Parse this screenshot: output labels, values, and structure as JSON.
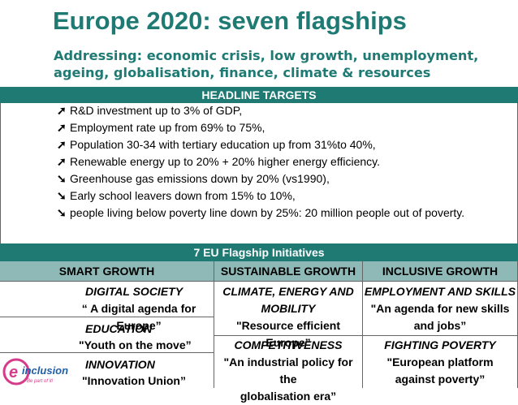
{
  "title": "Europe 2020: seven flagships",
  "subtitle_line1": "Addressing: economic crisis, low growth, unemployment,",
  "subtitle_line2": "ageing, globalisation, finance, climate & resources",
  "headline_header": "HEADLINE TARGETS",
  "targets": [
    {
      "arrow": "up",
      "text": "R&D investment up to 3% of GDP,"
    },
    {
      "arrow": "up",
      "text": "Employment rate up from 69% to 75%,"
    },
    {
      "arrow": "up",
      "text": "Population 30-34 with tertiary education up from 31%to 40%,"
    },
    {
      "arrow": "up",
      "text": "Renewable energy up to 20% + 20% higher energy efficiency."
    },
    {
      "arrow": "down",
      "text": "Greenhouse gas emissions down by 20% (vs1990),"
    },
    {
      "arrow": "down",
      "text": "Early school leavers down from 15% to 10%,"
    },
    {
      "arrow": "down",
      "text": "people living below poverty line down by 25%: 20 million people out of poverty."
    }
  ],
  "flagship_header": "7 EU Flagship Initiatives",
  "columns": [
    "SMART GROWTH",
    "SUSTAINABLE GROWTH",
    "INCLUSIVE GROWTH"
  ],
  "smart": {
    "digital_title": "DIGITAL SOCIETY",
    "digital_text": "“ A digital agenda for Europe”",
    "education_title": "EDUCATION",
    "education_text": "\"Youth on the move”",
    "innovation_title": "INNOVATION",
    "innovation_text": "\"Innovation Union”"
  },
  "sustainable": {
    "climate_title_1": "CLIMATE, ENERGY AND",
    "climate_title_2": "MOBILITY",
    "climate_text": "\"Resource efficient Europe”",
    "comp_title": "COMPETITIVENESS",
    "comp_text_1": "\"An industrial policy for the",
    "comp_text_2": "globalisation era”"
  },
  "inclusive": {
    "emp_title": "EMPLOYMENT AND SKILLS",
    "emp_text_1": "\"An agenda for new skills",
    "emp_text_2": "and jobs”",
    "pov_title": "FIGHTING POVERTY",
    "pov_text_1": "\"European platform",
    "pov_text_2": "against poverty”"
  },
  "logo": {
    "name": "einclusion",
    "tagline": "Be part of it!",
    "color": "#1f5fa8",
    "accent": "#d63a8a"
  },
  "colors": {
    "teal": "#1f7a74",
    "header_bg": "#8fb9b7"
  }
}
